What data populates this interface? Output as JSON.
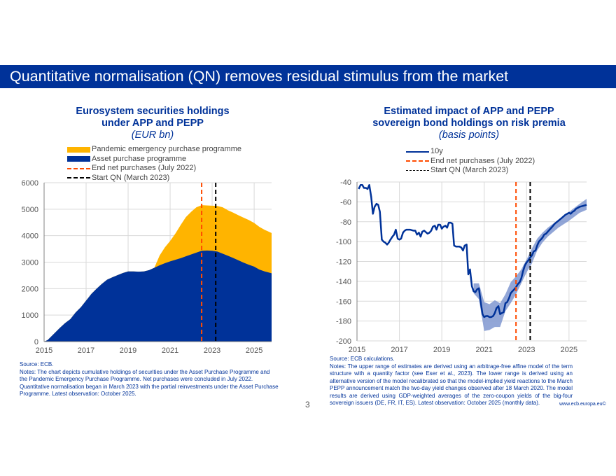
{
  "slide": {
    "title": "Quantitative normalisation (QN) removes residual stimulus from the market",
    "page_number": "3",
    "footer_url": "www.ecb.europa.eu©",
    "colors": {
      "brand_blue": "#003299",
      "pepp_yellow": "#FFB400",
      "app_blue": "#003299",
      "end_net_orange": "#FF4B00",
      "start_qn_black": "#000000",
      "band_blue": "#7F97D0"
    }
  },
  "left": {
    "title_line1": "Eurosystem securities holdings",
    "title_line2": "under APP and PEPP",
    "subtitle": "(EUR bn)",
    "legend": [
      "Pandemic emergency purchase programme",
      "Asset purchase programme",
      "End net purchases (July 2022)",
      "Start QN (March 2023)"
    ],
    "source": "Source: ECB.",
    "notes": "Notes: The chart depicts cumulative holdings of securities under the Asset Purchase Programme and the Pandemic Emergency Purchase Programme. Net purchases were concluded in July 2022. Quantitative normalisation began in March 2023 with the partial reinvestments under the Asset Purchase Programme. Latest observation: October 2025."
  },
  "right": {
    "title_line1": "Estimated impact of APP and PEPP",
    "title_line2": "sovereign bond holdings on risk premia",
    "subtitle": "(basis points)",
    "legend": [
      "10y",
      "End net purchases (July 2022)",
      "Start QN (March 2023)"
    ],
    "source": "Source: ECB calculations.",
    "notes": "Notes: The upper range of estimates are derived using an arbitrage-free affine model of the term structure with a quantity factor (see Eser et al., 2023). The lower range is derived using an alternative version of the model recalibrated so that the model-implied yield reactions to the March PEPP announcement match the two-day yield changes observed after 18 March 2020. The model results are derived using GDP-weighted averages of the zero-coupon yields of the big-four sovereign issuers (DE, FR, IT, ES). Latest observation: October 2025 (monthly data)."
  },
  "chart_data": [
    {
      "type": "area",
      "stacked": true,
      "title": "Eurosystem securities holdings under APP and PEPP",
      "subtitle": "(EUR bn)",
      "xlabel": "",
      "ylabel": "",
      "xlim": [
        2015.0,
        2025.83
      ],
      "ylim": [
        0,
        6000
      ],
      "x_ticks": [
        "2015",
        "2017",
        "2019",
        "2021",
        "2023",
        "2025"
      ],
      "x_tick_values": [
        2015,
        2017,
        2019,
        2021,
        2023,
        2025
      ],
      "y_ticks": [
        0,
        1000,
        2000,
        3000,
        4000,
        5000,
        6000
      ],
      "grid": true,
      "legend_position": "top",
      "x": [
        2015.0,
        2015.17,
        2015.5,
        2015.75,
        2016.0,
        2016.25,
        2016.5,
        2016.75,
        2017.0,
        2017.25,
        2017.5,
        2017.75,
        2018.0,
        2018.25,
        2018.5,
        2018.75,
        2019.0,
        2019.25,
        2019.5,
        2019.75,
        2020.0,
        2020.25,
        2020.5,
        2020.75,
        2021.0,
        2021.25,
        2021.5,
        2021.75,
        2022.0,
        2022.25,
        2022.5,
        2022.75,
        2023.0,
        2023.25,
        2023.5,
        2023.75,
        2024.0,
        2024.25,
        2024.5,
        2024.75,
        2025.0,
        2025.25,
        2025.5,
        2025.83
      ],
      "series": [
        {
          "name": "Asset purchase programme",
          "color": "#003299",
          "values": [
            0,
            60,
            320,
            520,
            700,
            850,
            1100,
            1300,
            1550,
            1800,
            2000,
            2180,
            2340,
            2430,
            2510,
            2590,
            2650,
            2650,
            2640,
            2650,
            2700,
            2790,
            2880,
            2960,
            3030,
            3090,
            3150,
            3220,
            3290,
            3360,
            3430,
            3440,
            3430,
            3400,
            3320,
            3240,
            3160,
            3070,
            2980,
            2900,
            2830,
            2720,
            2650,
            2580
          ]
        },
        {
          "name": "Pandemic emergency purchase programme",
          "color": "#FFB400",
          "values": [
            0,
            0,
            0,
            0,
            0,
            0,
            0,
            0,
            0,
            0,
            0,
            0,
            0,
            0,
            0,
            0,
            0,
            0,
            0,
            0,
            0,
            0,
            370,
            600,
            770,
            990,
            1250,
            1480,
            1610,
            1710,
            1720,
            1700,
            1700,
            1720,
            1750,
            1720,
            1710,
            1700,
            1700,
            1690,
            1650,
            1610,
            1570,
            1520
          ]
        }
      ],
      "vlines": [
        {
          "name": "End net purchases (July 2022)",
          "x": 2022.5,
          "color": "#FF4B00",
          "style": "dashed"
        },
        {
          "name": "Start QN (March 2023)",
          "x": 2023.17,
          "color": "#000000",
          "style": "dashed"
        }
      ]
    },
    {
      "type": "line",
      "title": "Estimated impact of APP and PEPP sovereign bond holdings on risk premia",
      "subtitle": "(basis points)",
      "xlabel": "",
      "ylabel": "",
      "xlim": [
        2015.0,
        2025.83
      ],
      "ylim": [
        -200,
        -40
      ],
      "x_ticks": [
        "2015",
        "2017",
        "2019",
        "2021",
        "2023",
        "2025"
      ],
      "x_tick_values": [
        2015,
        2017,
        2019,
        2021,
        2023,
        2025
      ],
      "y_ticks": [
        -200,
        -180,
        -160,
        -140,
        -120,
        -100,
        -80,
        -60,
        -40
      ],
      "grid": true,
      "legend_position": "top",
      "series": [
        {
          "name": "10y",
          "color": "#003299",
          "x": [
            2015.08,
            2015.17,
            2015.25,
            2015.33,
            2015.42,
            2015.5,
            2015.58,
            2015.67,
            2015.75,
            2015.83,
            2015.92,
            2016.0,
            2016.08,
            2016.17,
            2016.25,
            2016.33,
            2016.42,
            2016.5,
            2016.58,
            2016.67,
            2016.75,
            2016.83,
            2016.92,
            2017.0,
            2017.08,
            2017.17,
            2017.25,
            2017.33,
            2017.5,
            2017.67,
            2017.75,
            2017.83,
            2017.92,
            2018.0,
            2018.08,
            2018.17,
            2018.33,
            2018.42,
            2018.5,
            2018.58,
            2018.67,
            2018.75,
            2018.83,
            2018.92,
            2019.0,
            2019.08,
            2019.17,
            2019.25,
            2019.33,
            2019.42,
            2019.5,
            2019.58,
            2019.67,
            2019.83,
            2019.92,
            2020.0,
            2020.08,
            2020.17,
            2020.25,
            2020.33,
            2020.42,
            2020.5,
            2020.58,
            2020.67,
            2020.75,
            2020.83,
            2020.92,
            2021.0,
            2021.08,
            2021.17,
            2021.25,
            2021.33,
            2021.42,
            2021.5,
            2021.58,
            2021.67,
            2021.75,
            2021.83,
            2021.92,
            2022.0,
            2022.08,
            2022.17,
            2022.25,
            2022.33,
            2022.42,
            2022.5,
            2022.58,
            2022.67,
            2022.75,
            2022.83,
            2022.92,
            2023.0,
            2023.08,
            2023.17,
            2023.25,
            2023.33,
            2023.42,
            2023.5,
            2023.58,
            2023.67,
            2023.75,
            2023.83,
            2023.92,
            2024.0,
            2024.17,
            2024.33,
            2024.5,
            2024.67,
            2024.83,
            2025.0,
            2025.08,
            2025.17,
            2025.25,
            2025.33,
            2025.5,
            2025.67,
            2025.83
          ],
          "values": [
            -47,
            -43,
            -43,
            -46,
            -46,
            -47,
            -43,
            -55,
            -72,
            -65,
            -62,
            -63,
            -70,
            -98,
            -100,
            -101,
            -103,
            -101,
            -98,
            -95,
            -93,
            -88,
            -97,
            -98,
            -97,
            -91,
            -89,
            -88,
            -88,
            -89,
            -89,
            -93,
            -91,
            -95,
            -90,
            -89,
            -92,
            -91,
            -89,
            -85,
            -84,
            -88,
            -83,
            -83,
            -87,
            -85,
            -84,
            -86,
            -81,
            -81,
            -82,
            -104,
            -105,
            -105,
            -106,
            -109,
            -104,
            -103,
            -133,
            -128,
            -145,
            -150,
            -151,
            -148,
            -147,
            -160,
            -173,
            -176,
            -175,
            -175,
            -176,
            -176,
            -175,
            -172,
            -167,
            -165,
            -173,
            -172,
            -171,
            -162,
            -161,
            -157,
            -152,
            -150,
            -148,
            -146,
            -143,
            -141,
            -137,
            -130,
            -124,
            -121,
            -119,
            -116,
            -114,
            -110,
            -109,
            -104,
            -100,
            -98,
            -96,
            -93,
            -92,
            -90,
            -86,
            -82,
            -79,
            -76,
            -73,
            -71,
            -72,
            -70,
            -69,
            -67,
            -65,
            -64,
            -63
          ]
        }
      ],
      "range_band": {
        "name": "Range of estimates",
        "color": "#7F97D0",
        "x": [
          2020.5,
          2020.75,
          2021.0,
          2021.25,
          2021.5,
          2021.75,
          2022.0,
          2022.25,
          2022.5,
          2022.75,
          2023.0,
          2023.25,
          2023.5,
          2023.75,
          2024.0,
          2024.5,
          2025.0,
          2025.5,
          2025.83
        ],
        "upper": [
          -142,
          -142,
          -161,
          -163,
          -159,
          -162,
          -153,
          -141,
          -135,
          -128,
          -118,
          -107,
          -97,
          -91,
          -86,
          -78,
          -70,
          -62,
          -57
        ],
        "lower": [
          -152,
          -158,
          -190,
          -189,
          -186,
          -186,
          -170,
          -162,
          -153,
          -142,
          -131,
          -122,
          -109,
          -101,
          -95,
          -86,
          -79,
          -71,
          -68
        ]
      },
      "vlines": [
        {
          "name": "End net purchases (July 2022)",
          "x": 2022.5,
          "color": "#FF4B00",
          "style": "dashed"
        },
        {
          "name": "Start QN (March 2023)",
          "x": 2023.17,
          "color": "#000000",
          "style": "dashed"
        }
      ]
    }
  ]
}
